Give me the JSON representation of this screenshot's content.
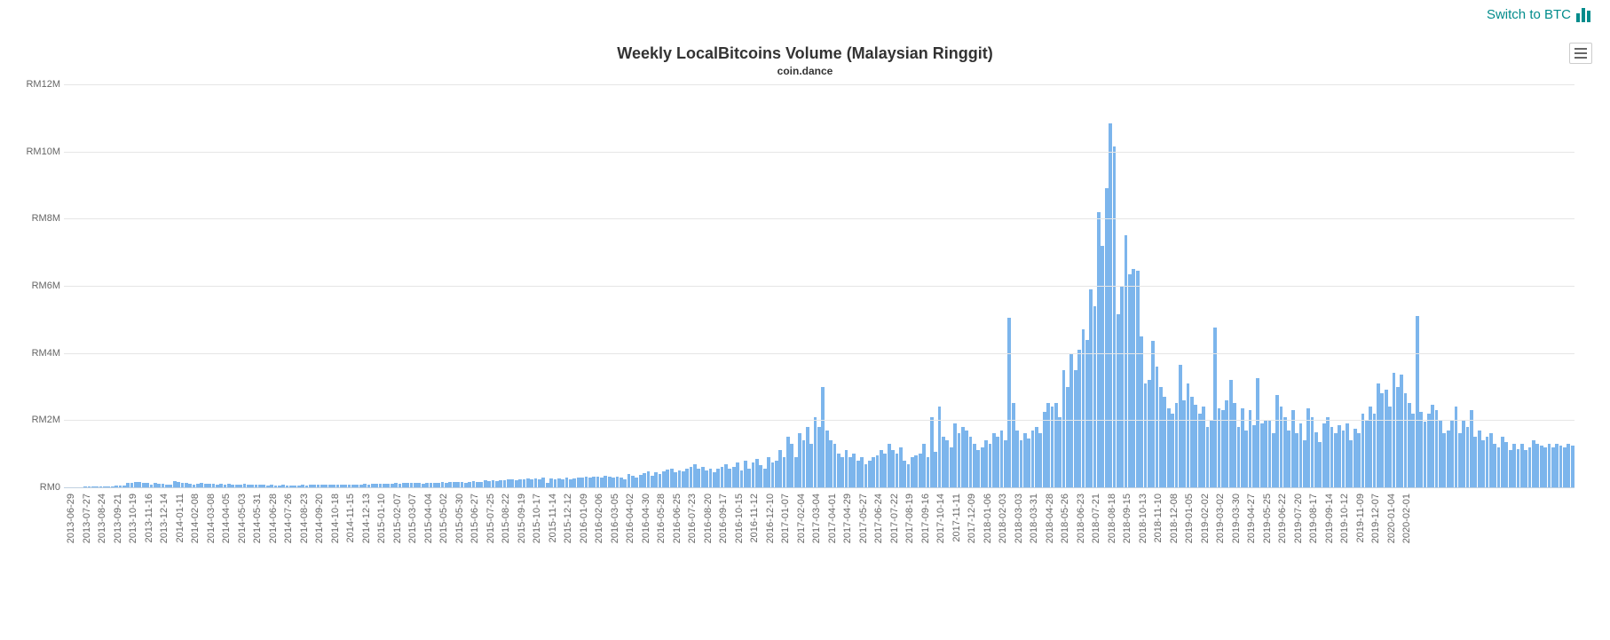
{
  "link": {
    "text": "Switch to BTC"
  },
  "chart": {
    "type": "bar",
    "title": "Weekly LocalBitcoins Volume (Malaysian Ringgit)",
    "subtitle": "coin.dance",
    "bar_color": "#7cb5ec",
    "grid_color": "#e6e6e6",
    "axis_line_color": "#c0d0e0",
    "background_color": "#ffffff",
    "text_color": "#666666",
    "title_color": "#333333",
    "link_color": "#028c8c",
    "title_fontsize": 18,
    "subtitle_fontsize": 12,
    "label_fontsize": 11,
    "ylim": [
      0,
      12
    ],
    "ytick_step": 2,
    "y_prefix": "RM",
    "y_suffix": "M",
    "y_labels": [
      "RM0",
      "RM2M",
      "RM4M",
      "RM6M",
      "RM8M",
      "RM10M",
      "RM12M"
    ],
    "x_labels": [
      "2013-06-29",
      "2013-07-27",
      "2013-08-24",
      "2013-09-21",
      "2013-10-19",
      "2013-11-16",
      "2013-12-14",
      "2014-01-11",
      "2014-02-08",
      "2014-03-08",
      "2014-04-05",
      "2014-05-03",
      "2014-05-31",
      "2014-06-28",
      "2014-07-26",
      "2014-08-23",
      "2014-09-20",
      "2014-10-18",
      "2014-11-15",
      "2014-12-13",
      "2015-01-10",
      "2015-02-07",
      "2015-03-07",
      "2015-04-04",
      "2015-05-02",
      "2015-05-30",
      "2015-06-27",
      "2015-07-25",
      "2015-08-22",
      "2015-09-19",
      "2015-10-17",
      "2015-11-14",
      "2015-12-12",
      "2016-01-09",
      "2016-02-06",
      "2016-03-05",
      "2016-04-02",
      "2016-04-30",
      "2016-05-28",
      "2016-06-25",
      "2016-07-23",
      "2016-08-20",
      "2016-09-17",
      "2016-10-15",
      "2016-11-12",
      "2016-12-10",
      "2017-01-07",
      "2017-02-04",
      "2017-03-04",
      "2017-04-01",
      "2017-04-29",
      "2017-05-27",
      "2017-06-24",
      "2017-07-22",
      "2017-08-19",
      "2017-09-16",
      "2017-10-14",
      "2017-11-11",
      "2017-12-09",
      "2018-01-06",
      "2018-02-03",
      "2018-03-03",
      "2018-03-31",
      "2018-04-28",
      "2018-05-26",
      "2018-06-23",
      "2018-07-21",
      "2018-08-18",
      "2018-09-15",
      "2018-10-13",
      "2018-11-10",
      "2018-12-08",
      "2019-01-05",
      "2019-02-02",
      "2019-03-02",
      "2019-03-30",
      "2019-04-27",
      "2019-05-25",
      "2019-06-22",
      "2019-07-20",
      "2019-08-17",
      "2019-09-14",
      "2019-10-12",
      "2019-11-09",
      "2019-12-07",
      "2020-01-04",
      "2020-02-01"
    ],
    "x_label_every": 4,
    "values": [
      0,
      0.01,
      0.01,
      0.01,
      0.01,
      0.02,
      0.02,
      0.02,
      0.03,
      0.03,
      0.03,
      0.04,
      0.04,
      0.05,
      0.06,
      0.06,
      0.12,
      0.14,
      0.16,
      0.15,
      0.14,
      0.12,
      0.08,
      0.13,
      0.11,
      0.1,
      0.09,
      0.07,
      0.18,
      0.15,
      0.12,
      0.14,
      0.1,
      0.09,
      0.11,
      0.12,
      0.1,
      0.11,
      0.1,
      0.09,
      0.1,
      0.09,
      0.1,
      0.09,
      0.08,
      0.09,
      0.1,
      0.09,
      0.08,
      0.08,
      0.07,
      0.07,
      0.06,
      0.07,
      0.06,
      0.06,
      0.07,
      0.06,
      0.06,
      0.05,
      0.06,
      0.07,
      0.06,
      0.07,
      0.07,
      0.08,
      0.08,
      0.07,
      0.08,
      0.07,
      0.08,
      0.09,
      0.08,
      0.07,
      0.08,
      0.09,
      0.08,
      0.1,
      0.09,
      0.1,
      0.1,
      0.1,
      0.11,
      0.1,
      0.11,
      0.12,
      0.11,
      0.12,
      0.13,
      0.12,
      0.13,
      0.12,
      0.11,
      0.13,
      0.14,
      0.13,
      0.14,
      0.15,
      0.14,
      0.16,
      0.15,
      0.16,
      0.15,
      0.14,
      0.17,
      0.18,
      0.16,
      0.17,
      0.2,
      0.18,
      0.21,
      0.19,
      0.2,
      0.22,
      0.23,
      0.25,
      0.22,
      0.24,
      0.23,
      0.26,
      0.25,
      0.27,
      0.24,
      0.28,
      0.13,
      0.26,
      0.24,
      0.27,
      0.25,
      0.28,
      0.24,
      0.26,
      0.28,
      0.3,
      0.32,
      0.29,
      0.31,
      0.33,
      0.3,
      0.34,
      0.32,
      0.3,
      0.33,
      0.3,
      0.25,
      0.4,
      0.35,
      0.3,
      0.38,
      0.42,
      0.48,
      0.35,
      0.45,
      0.4,
      0.48,
      0.52,
      0.55,
      0.45,
      0.5,
      0.48,
      0.55,
      0.6,
      0.7,
      0.55,
      0.6,
      0.5,
      0.55,
      0.45,
      0.55,
      0.6,
      0.7,
      0.55,
      0.6,
      0.75,
      0.5,
      0.8,
      0.55,
      0.75,
      0.85,
      0.65,
      0.55,
      0.9,
      0.75,
      0.8,
      1.1,
      0.9,
      1.5,
      1.3,
      0.9,
      1.6,
      1.4,
      1.8,
      1.3,
      2.1,
      1.8,
      3.0,
      1.7,
      1.4,
      1.3,
      1.0,
      0.9,
      1.1,
      0.9,
      1.0,
      0.8,
      0.9,
      0.7,
      0.8,
      0.9,
      0.95,
      1.1,
      1.0,
      1.3,
      1.1,
      1.0,
      1.2,
      0.8,
      0.7,
      0.9,
      0.95,
      1.0,
      1.3,
      0.9,
      2.1,
      1.05,
      2.4,
      1.5,
      1.4,
      1.2,
      1.9,
      1.6,
      1.8,
      1.7,
      1.5,
      1.3,
      1.1,
      1.2,
      1.4,
      1.3,
      1.6,
      1.5,
      1.7,
      1.4,
      5.05,
      2.5,
      1.7,
      1.4,
      1.6,
      1.45,
      1.7,
      1.8,
      1.6,
      2.25,
      2.5,
      2.4,
      2.5,
      2.1,
      3.5,
      3.0,
      4.0,
      3.5,
      4.1,
      4.7,
      4.4,
      5.9,
      5.4,
      8.2,
      7.2,
      8.9,
      10.85,
      10.15,
      5.15,
      6.0,
      7.5,
      6.35,
      6.5,
      6.45,
      4.5,
      3.1,
      3.2,
      4.35,
      3.6,
      3.0,
      2.7,
      2.35,
      2.2,
      2.5,
      3.65,
      2.6,
      3.1,
      2.7,
      2.45,
      2.2,
      2.4,
      1.8,
      2.0,
      4.75,
      2.35,
      2.3,
      2.6,
      3.2,
      2.5,
      1.8,
      2.35,
      1.7,
      2.3,
      1.85,
      3.25,
      1.9,
      2.0,
      2.0,
      1.6,
      2.75,
      2.4,
      2.1,
      1.7,
      2.3,
      1.6,
      1.9,
      1.4,
      2.35,
      2.1,
      1.65,
      1.35,
      1.9,
      2.1,
      1.8,
      1.6,
      1.85,
      1.7,
      1.9,
      1.4,
      1.75,
      1.6,
      2.2,
      2.0,
      2.4,
      2.2,
      3.1,
      2.8,
      2.9,
      2.4,
      3.4,
      3.0,
      3.35,
      2.8,
      2.5,
      2.2,
      5.1,
      2.25,
      1.95,
      2.2,
      2.45,
      2.3,
      2.0,
      1.6,
      1.7,
      2.0,
      2.4,
      1.6,
      2.0,
      1.8,
      2.3,
      1.5,
      1.7,
      1.4,
      1.5,
      1.6,
      1.3,
      1.2,
      1.5,
      1.35,
      1.1,
      1.3,
      1.15,
      1.3,
      1.1,
      1.2,
      1.4,
      1.3,
      1.25,
      1.2,
      1.3,
      1.2,
      1.3,
      1.25,
      1.2,
      1.3,
      1.25
    ]
  }
}
